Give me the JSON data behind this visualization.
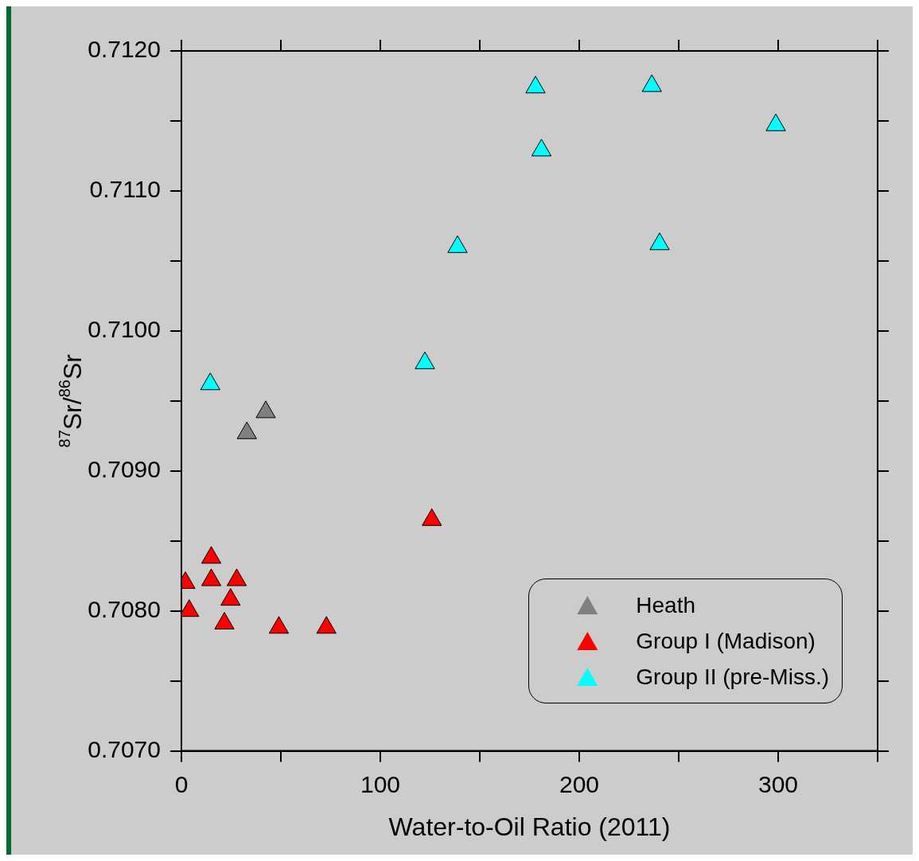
{
  "chart_data": {
    "type": "scatter",
    "xlabel": "Water-to-Oil Ratio (2011)",
    "ylabel": "$^{87}$Sr/$^{86}$Sr",
    "xlim": [
      0,
      350
    ],
    "ylim": [
      0.707,
      0.712
    ],
    "xticks": [
      0,
      {
        "value": 50,
        "label": null
      },
      100,
      {
        "value": 150,
        "label": null
      },
      200,
      {
        "value": 250,
        "label": null
      },
      300,
      {
        "value": 350,
        "label": null
      }
    ],
    "yticks": [
      {
        "value": 0.707,
        "label": "0.7070"
      },
      {
        "value": 0.7075,
        "label": null
      },
      {
        "value": 0.708,
        "label": "0.7080"
      },
      {
        "value": 0.7085,
        "label": null
      },
      {
        "value": 0.709,
        "label": "0.7090"
      },
      {
        "value": 0.7095,
        "label": null
      },
      {
        "value": 0.71,
        "label": "0.7100"
      },
      {
        "value": 0.7105,
        "label": null
      },
      {
        "value": 0.711,
        "label": "0.7110"
      },
      {
        "value": 0.7115,
        "label": null
      },
      {
        "value": 0.712,
        "label": "0.7120"
      }
    ],
    "grid": false,
    "legend": "bottom right",
    "marker": "triangle",
    "series": [
      {
        "name": "Heath",
        "color": "#808080",
        "x": [
          42.4,
          32.9
        ],
        "values": [
          0.70942,
          0.70927
        ]
      },
      {
        "name": "Group I (Madison)",
        "color": "#ff0000",
        "x": [
          125.9,
          15,
          15,
          27.8,
          2,
          24.7,
          3.9,
          21.6,
          49,
          72.9
        ],
        "values": [
          0.70865,
          0.70838,
          0.70822,
          0.70822,
          0.7082,
          0.70808,
          0.708,
          0.70791,
          0.70788,
          0.70788
        ]
      },
      {
        "name": "Group II (pre-Miss.)",
        "color": "#00ffff",
        "x": [
          14.5,
          178,
          236.5,
          298.8,
          181,
          138.8,
          240.4,
          122.4
        ],
        "values": [
          0.70962,
          0.71174,
          0.71175,
          0.71147,
          0.71129,
          0.7106,
          0.71062,
          0.70977
        ]
      }
    ]
  }
}
